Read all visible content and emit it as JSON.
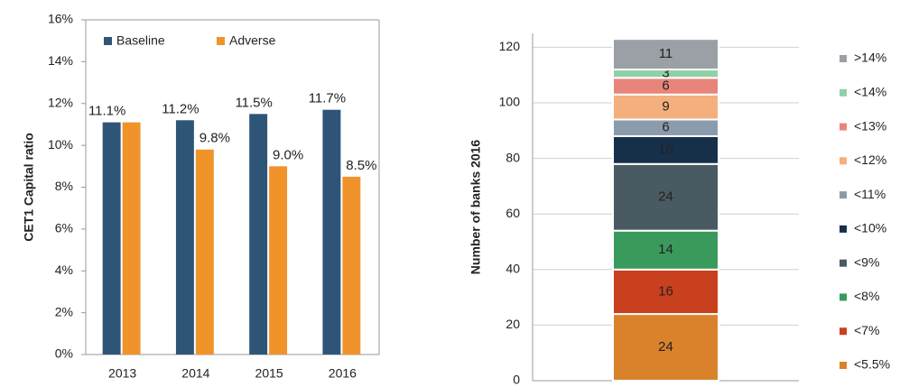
{
  "chart_data": [
    {
      "type": "bar",
      "y_label": "CET1 Capital ratio",
      "categories": [
        "2013",
        "2014",
        "2015",
        "2016"
      ],
      "series": [
        {
          "name": "Baseline",
          "color": "#2e5577",
          "values": [
            11.1,
            11.2,
            11.5,
            11.7
          ],
          "value_labels": [
            "11.1%",
            "11.2%",
            "11.5%",
            "11.7%"
          ]
        },
        {
          "name": "Adverse",
          "color": "#f0932b",
          "values": [
            11.1,
            9.8,
            9.0,
            8.5
          ],
          "value_labels": [
            null,
            "9.8%",
            "9.0%",
            "8.5%"
          ]
        }
      ],
      "ylim": [
        0,
        16
      ],
      "yticks": [
        {
          "value": 0,
          "label": "0%"
        },
        {
          "value": 2,
          "label": "2%"
        },
        {
          "value": 4,
          "label": "4%"
        },
        {
          "value": 6,
          "label": "6%"
        },
        {
          "value": 8,
          "label": "8%"
        },
        {
          "value": 10,
          "label": "10%"
        },
        {
          "value": 12,
          "label": "12%"
        },
        {
          "value": 14,
          "label": "14%"
        },
        {
          "value": 16,
          "label": "16%"
        }
      ],
      "grid": false,
      "legend": "top"
    },
    {
      "type": "stacked_bar",
      "y_label": "Number of banks 2016",
      "categories": [
        null
      ],
      "series": [
        {
          "name": "<5.5%",
          "color": "#d9822b",
          "values": [
            24
          ]
        },
        {
          "name": "<7%",
          "color": "#c9401f",
          "values": [
            16
          ]
        },
        {
          "name": "<8%",
          "color": "#3a9a5b",
          "values": [
            14
          ]
        },
        {
          "name": "<9%",
          "color": "#4a5a63",
          "values": [
            24
          ]
        },
        {
          "name": "<10%",
          "color": "#17304a",
          "values": [
            10
          ]
        },
        {
          "name": "<11%",
          "color": "#8b9bab",
          "values": [
            6
          ]
        },
        {
          "name": "<12%",
          "color": "#f3b07e",
          "values": [
            9
          ]
        },
        {
          "name": "<13%",
          "color": "#e8857a",
          "values": [
            6
          ]
        },
        {
          "name": "<14%",
          "color": "#8fd0a8",
          "values": [
            3
          ]
        },
        {
          "name": ">14%",
          "color": "#9aa0a5",
          "values": [
            11
          ]
        }
      ],
      "ylim": [
        0,
        125
      ],
      "yticks": [
        0,
        20,
        40,
        60,
        80,
        100,
        120
      ],
      "grid": true,
      "legend": "right"
    }
  ]
}
